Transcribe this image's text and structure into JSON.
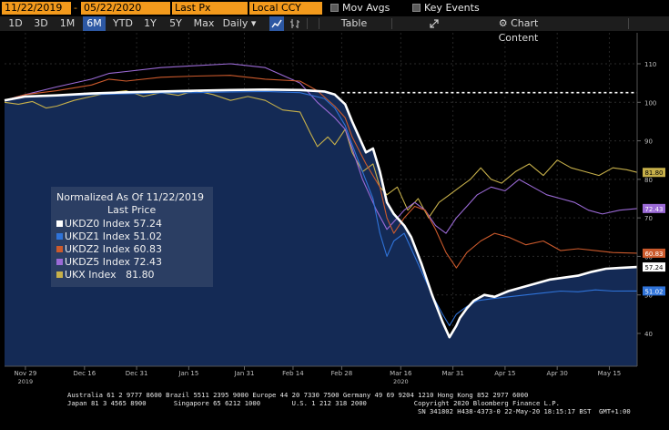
{
  "header": {
    "start_date": "11/22/2019",
    "end_date": "05/22/2020",
    "field_label": "Last Px",
    "currency_label": "Local CCY",
    "mov_avgs_label": "Mov Avgs",
    "key_events_label": "Key Events"
  },
  "toolbar": {
    "periods": [
      "1D",
      "3D",
      "1M",
      "6M",
      "YTD",
      "1Y",
      "5Y",
      "Max"
    ],
    "active_period": "6M",
    "frequency_label": "Daily",
    "table_label": "Table",
    "chart_content_label": "Chart Content"
  },
  "colors": {
    "UKDZ0": "#ffffff",
    "UKDZ1": "#2f73d9",
    "UKDZ2": "#cc5a2c",
    "UKDZ5": "#9b6ad6",
    "UKX": "#c7b04a",
    "area": "#142a55",
    "accent": "#f39a1c"
  },
  "legend": {
    "title": "Normalized As Of 11/22/2019",
    "subtitle": "Last Price",
    "items": [
      {
        "label": "UKDZ0 Index 57.24",
        "color": "#ffffff"
      },
      {
        "label": "UKDZ1 Index 51.02",
        "color": "#2f73d9"
      },
      {
        "label": "UKDZ2 Index 60.83",
        "color": "#cc5a2c"
      },
      {
        "label": "UKDZ5 Index 72.43",
        "color": "#9b6ad6"
      },
      {
        "label": "UKX Index   81.80",
        "color": "#c7b04a"
      }
    ]
  },
  "chart_data": {
    "type": "line",
    "title": "Normalized As Of 11/22/2019",
    "ylim": [
      30,
      115
    ],
    "y_ticks": [
      40,
      50,
      60,
      70,
      80,
      90,
      100,
      110
    ],
    "y_tick_labels": [
      "40",
      "50",
      "60",
      "70",
      "80",
      "90",
      "100",
      "110"
    ],
    "x_ticks": [
      "Nov 29",
      "Dec 16",
      "Dec 31",
      "Jan 15",
      "Jan 31",
      "Feb 14",
      "Feb 28",
      "Mar 16",
      "Mar 31",
      "Apr 15",
      "Apr 30",
      "May 15"
    ],
    "x_tick_t": [
      6,
      23,
      38,
      53,
      69,
      83,
      97,
      114,
      129,
      144,
      159,
      174
    ],
    "year_labels": [
      {
        "t": 6,
        "label": "2019"
      },
      {
        "t": 114,
        "label": "2020"
      }
    ],
    "reference_line": 102.5,
    "series": [
      {
        "name": "UKDZ0 Index",
        "last": 57.24,
        "last_label": "57.24",
        "t": [
          0,
          6,
          15,
          25,
          35,
          45,
          55,
          65,
          75,
          85,
          92,
          95,
          98,
          100,
          104,
          106,
          108,
          110,
          112,
          115,
          117,
          120,
          123,
          126,
          128,
          130,
          131,
          133,
          135,
          138,
          141,
          145,
          149,
          153,
          157,
          161,
          165,
          169,
          173,
          177,
          182
        ],
        "values": [
          100.5,
          101.5,
          101.8,
          102.3,
          102.6,
          102.8,
          103.0,
          103.2,
          103.3,
          103.2,
          102.8,
          102.0,
          99.5,
          95.0,
          87.0,
          88.0,
          82.0,
          74.0,
          71.0,
          68.0,
          65.0,
          58.0,
          50.0,
          43.0,
          39.0,
          42.0,
          44.0,
          46.5,
          48.5,
          50.0,
          49.5,
          51.0,
          52.0,
          53.0,
          54.0,
          54.5,
          55.0,
          56.0,
          56.8,
          57.0,
          57.24
        ]
      },
      {
        "name": "UKDZ1 Index",
        "last": 51.02,
        "last_label": "51.02",
        "t": [
          0,
          6,
          15,
          25,
          35,
          45,
          55,
          65,
          75,
          85,
          92,
          95,
          98,
          100,
          103,
          106,
          108,
          110,
          112,
          115,
          117,
          120,
          123,
          126,
          128,
          130,
          133,
          136,
          140,
          145,
          150,
          155,
          160,
          165,
          170,
          175,
          182
        ],
        "values": [
          100.5,
          101.4,
          101.6,
          102.0,
          102.2,
          102.4,
          102.5,
          102.7,
          102.8,
          102.5,
          101.0,
          98.5,
          94.0,
          89.0,
          82.0,
          75.0,
          66.0,
          60.0,
          64.0,
          66.0,
          62.0,
          56.0,
          50.0,
          45.0,
          42.0,
          45.0,
          47.0,
          48.5,
          49.0,
          49.5,
          50.0,
          50.5,
          51.0,
          50.8,
          51.3,
          51.0,
          51.02
        ]
      },
      {
        "name": "UKDZ2 Index",
        "last": 60.83,
        "last_label": "60.83",
        "t": [
          0,
          6,
          15,
          25,
          30,
          35,
          45,
          55,
          65,
          75,
          85,
          90,
          95,
          98,
          100,
          104,
          108,
          110,
          112,
          115,
          118,
          121,
          124,
          127,
          130,
          133,
          137,
          141,
          145,
          150,
          155,
          160,
          165,
          170,
          175,
          182
        ],
        "values": [
          100.5,
          102.0,
          103.0,
          104.5,
          106.0,
          105.5,
          106.5,
          106.8,
          107.0,
          106.0,
          105.5,
          103.0,
          99.0,
          96.0,
          91.0,
          84.0,
          78.0,
          70.0,
          66.0,
          70.0,
          73.0,
          72.0,
          67.0,
          61.0,
          57.0,
          61.0,
          64.0,
          66.0,
          65.0,
          63.0,
          64.0,
          61.5,
          62.0,
          61.5,
          61.0,
          60.83
        ]
      },
      {
        "name": "UKDZ5 Index",
        "last": 72.43,
        "last_label": "72.43",
        "t": [
          0,
          6,
          15,
          25,
          30,
          35,
          45,
          55,
          65,
          75,
          85,
          90,
          95,
          98,
          100,
          103,
          107,
          110,
          112,
          115,
          118,
          121,
          124,
          127,
          130,
          133,
          136,
          140,
          144,
          148,
          152,
          156,
          160,
          164,
          168,
          172,
          177,
          182
        ],
        "values": [
          100.5,
          102.0,
          104.0,
          106.0,
          107.5,
          108.0,
          109.0,
          109.5,
          110.0,
          109.0,
          105.0,
          100.0,
          96.0,
          93.0,
          88.0,
          80.0,
          72.0,
          67.0,
          69.0,
          72.0,
          74.0,
          72.0,
          68.0,
          66.0,
          70.0,
          73.0,
          76.0,
          78.0,
          77.0,
          80.0,
          78.0,
          76.0,
          75.0,
          74.0,
          72.0,
          71.0,
          72.0,
          72.43
        ]
      },
      {
        "name": "UKX Index",
        "last": 81.8,
        "last_label": "81.80",
        "t": [
          0,
          4,
          8,
          12,
          15,
          20,
          25,
          30,
          35,
          40,
          45,
          50,
          55,
          60,
          65,
          70,
          75,
          80,
          85,
          88,
          90,
          93,
          95,
          98,
          100,
          103,
          106,
          108,
          110,
          113,
          116,
          119,
          122,
          125,
          128,
          131,
          134,
          137,
          140,
          143,
          147,
          151,
          155,
          159,
          163,
          167,
          171,
          175,
          179,
          182
        ],
        "values": [
          100.0,
          99.5,
          100.2,
          98.5,
          99.0,
          100.5,
          101.5,
          102.5,
          103.0,
          101.5,
          102.5,
          101.8,
          103.0,
          102.0,
          100.5,
          101.5,
          100.5,
          98.0,
          97.5,
          92.0,
          88.5,
          91.0,
          89.0,
          93.0,
          87.0,
          82.0,
          84.0,
          78.0,
          76.0,
          78.0,
          72.0,
          75.0,
          70.0,
          74.0,
          76.0,
          78.0,
          80.0,
          83.0,
          80.0,
          79.0,
          82.0,
          84.0,
          81.0,
          85.0,
          83.0,
          82.0,
          81.0,
          83.0,
          82.5,
          81.8
        ]
      }
    ]
  },
  "footer": {
    "line1": "Australia 61 2 9777 8600 Brazil 5511 2395 9000 Europe 44 20 7330 7500 Germany 49 69 9204 1210 Hong Kong 852 2977 6000",
    "line2": "Japan 81 3 4565 8900       Singapore 65 6212 1000        U.S. 1 212 318 2000            Copyright 2020 Bloomberg Finance L.P.",
    "line3": "SN 341802 H438-4373-0 22-May-20 18:15:17 BST  GMT+1:00"
  }
}
